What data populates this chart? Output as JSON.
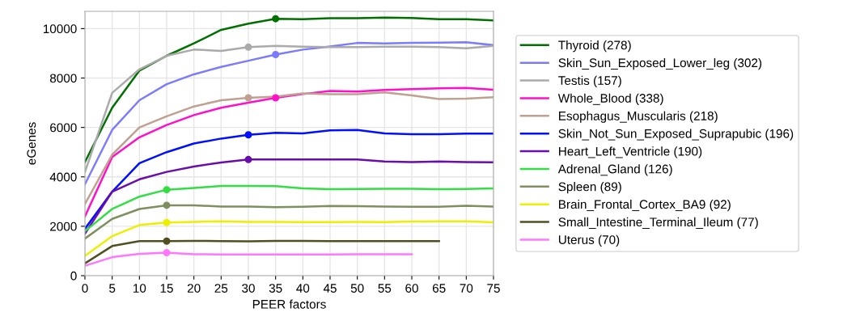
{
  "chart_data": {
    "type": "line",
    "xlabel": "PEER factors",
    "ylabel": "eGenes",
    "x": [
      0,
      5,
      10,
      15,
      20,
      25,
      30,
      35,
      40,
      45,
      50,
      55,
      60,
      65,
      70,
      75
    ],
    "series": [
      {
        "name": "Thyroid (278)",
        "color": "#007000",
        "values": [
          4600,
          6800,
          8300,
          8900,
          9400,
          9950,
          10200,
          10400,
          10380,
          10420,
          10420,
          10450,
          10430,
          10380,
          10380,
          10330
        ]
      },
      {
        "name": "Skin_Sun_Exposed_Lower_leg (302)",
        "color": "#7b7bff",
        "values": [
          3700,
          5900,
          7100,
          7750,
          8150,
          8450,
          8700,
          8950,
          9150,
          9280,
          9420,
          9400,
          9420,
          9430,
          9450,
          9330
        ]
      },
      {
        "name": "Testis (157)",
        "color": "#aaaaaa",
        "values": [
          4200,
          7400,
          8350,
          8900,
          9150,
          9100,
          9250,
          9300,
          9270,
          9250,
          9250,
          9270,
          9270,
          9250,
          9200,
          9300
        ]
      },
      {
        "name": "Whole_Blood (338)",
        "color": "#ff10c8",
        "values": [
          2400,
          4800,
          5600,
          6100,
          6500,
          6800,
          7000,
          7200,
          7350,
          7480,
          7450,
          7520,
          7550,
          7580,
          7600,
          7530
        ]
      },
      {
        "name": "Esophagus_Muscularis (218)",
        "color": "#c0a090",
        "values": [
          2900,
          4900,
          6000,
          6450,
          6850,
          7100,
          7200,
          7250,
          7380,
          7350,
          7350,
          7420,
          7300,
          7150,
          7170,
          7220
        ]
      },
      {
        "name": "Skin_Not_Sun_Exposed_Suprapubic (196)",
        "color": "#0010ff",
        "values": [
          1900,
          3400,
          4550,
          5000,
          5350,
          5550,
          5700,
          5780,
          5760,
          5880,
          5900,
          5760,
          5730,
          5730,
          5750,
          5750
        ]
      },
      {
        "name": "Heart_Left_Ventricle (190)",
        "color": "#6a0dad",
        "values": [
          1700,
          3400,
          3900,
          4200,
          4420,
          4580,
          4700,
          4700,
          4700,
          4700,
          4700,
          4620,
          4600,
          4620,
          4600,
          4590
        ]
      },
      {
        "name": "Adrenal_Gland (126)",
        "color": "#33dd44",
        "values": [
          1800,
          2700,
          3200,
          3480,
          3550,
          3630,
          3630,
          3620,
          3530,
          3500,
          3510,
          3520,
          3520,
          3500,
          3510,
          3530
        ]
      },
      {
        "name": "Spleen (89)",
        "color": "#7f8f5f",
        "values": [
          1500,
          2300,
          2700,
          2850,
          2850,
          2800,
          2800,
          2770,
          2790,
          2820,
          2810,
          2800,
          2790,
          2790,
          2830,
          2800
        ]
      },
      {
        "name": "Brain_Frontal_Cortex_BA9 (92)",
        "color": "#eeee00",
        "values": [
          800,
          1600,
          2050,
          2150,
          2180,
          2200,
          2180,
          2180,
          2170,
          2170,
          2180,
          2170,
          2190,
          2200,
          2200,
          2160
        ]
      },
      {
        "name": "Small_Intestine_Terminal_Ileum (77)",
        "color": "#4f4f1f",
        "values": [
          500,
          1200,
          1400,
          1400,
          1410,
          1400,
          1390,
          1410,
          1410,
          1400,
          1400,
          1400,
          1400,
          1400,
          null,
          null
        ]
      },
      {
        "name": "Uterus (70)",
        "color": "#ff77ff",
        "values": [
          400,
          750,
          880,
          930,
          870,
          860,
          860,
          860,
          860,
          860,
          870,
          870,
          870,
          null,
          null,
          null
        ]
      },
      {
        "type": "scatter",
        "color": "#007000",
        "x": [
          35
        ],
        "values": [
          10400
        ]
      },
      {
        "type": "scatter",
        "color": "#7b7bff",
        "x": [
          35
        ],
        "values": [
          8950
        ]
      },
      {
        "type": "scatter",
        "color": "#aaaaaa",
        "x": [
          30
        ],
        "values": [
          9250
        ]
      },
      {
        "type": "scatter",
        "color": "#ff10c8",
        "x": [
          35
        ],
        "values": [
          7200
        ]
      },
      {
        "type": "scatter",
        "color": "#c0a090",
        "x": [
          30
        ],
        "values": [
          7200
        ]
      },
      {
        "type": "scatter",
        "color": "#0010ff",
        "x": [
          30
        ],
        "values": [
          5700
        ]
      },
      {
        "type": "scatter",
        "color": "#6a0dad",
        "x": [
          30
        ],
        "values": [
          4700
        ]
      },
      {
        "type": "scatter",
        "color": "#33dd44",
        "x": [
          15
        ],
        "values": [
          3480
        ]
      },
      {
        "type": "scatter",
        "color": "#7f8f5f",
        "x": [
          15
        ],
        "values": [
          2850
        ]
      },
      {
        "type": "scatter",
        "color": "#eeee00",
        "x": [
          15
        ],
        "values": [
          2150
        ]
      },
      {
        "type": "scatter",
        "color": "#4f4f1f",
        "x": [
          15
        ],
        "values": [
          1400
        ]
      },
      {
        "type": "scatter",
        "color": "#ff77ff",
        "x": [
          15
        ],
        "values": [
          930
        ]
      }
    ],
    "xlim": [
      0,
      75
    ],
    "xticks": [
      0,
      5,
      10,
      15,
      20,
      25,
      30,
      35,
      40,
      45,
      50,
      55,
      60,
      65,
      70,
      75
    ],
    "ylim": [
      0,
      10700
    ],
    "yticks": [
      0,
      2000,
      4000,
      6000,
      8000,
      10000
    ],
    "grid": true,
    "legend": "right",
    "line_style": "solid"
  }
}
